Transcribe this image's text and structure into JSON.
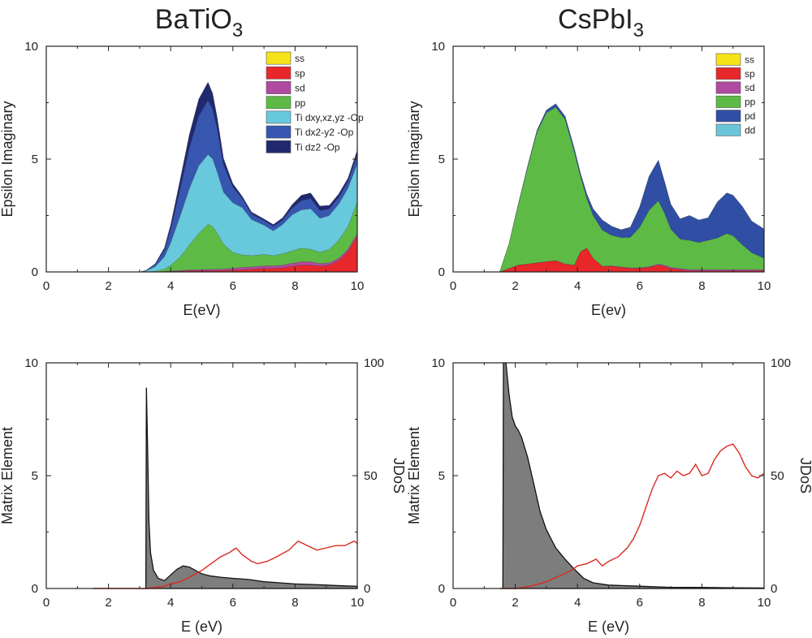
{
  "titles": {
    "left": "BaTiO",
    "left_sub": "3",
    "right": "CsPbI",
    "right_sub": "3"
  },
  "colors": {
    "ss": "#f7e21a",
    "sp": "#e8272b",
    "sd": "#b04aa0",
    "pp": "#5dbb45",
    "dxy": "#68c8dc",
    "dx2": "#3656b0",
    "dz2": "#21296e",
    "pd": "#2f4ea4",
    "dd": "#6bc5d8",
    "matrix": "#7d7d7d",
    "jdos": "#d92a20",
    "axis": "#222222"
  },
  "chart_data": [
    {
      "id": "batio3_eps",
      "type": "area",
      "title": "BaTiO3",
      "xlabel": "E(eV)",
      "ylabel": "Epsilon Imaginary",
      "xlim": [
        0,
        10
      ],
      "ylim": [
        0,
        10
      ],
      "xticks": [
        "0",
        "2",
        "4",
        "6",
        "8",
        "10"
      ],
      "yticks": [
        "0",
        "5",
        "10"
      ],
      "x": [
        3.0,
        3.2,
        3.5,
        3.8,
        4.0,
        4.3,
        4.6,
        4.9,
        5.2,
        5.35,
        5.5,
        5.7,
        6.0,
        6.3,
        6.6,
        7.0,
        7.3,
        7.6,
        7.9,
        8.2,
        8.5,
        8.8,
        9.1,
        9.4,
        9.7,
        10.0
      ],
      "legend": [
        "ss",
        "sp",
        "sd",
        "pp",
        "Ti dxy,xz,yz -Op",
        "Ti dx2-y2 -Op",
        "Ti dz2 -Op"
      ],
      "series": [
        {
          "name": "ss",
          "color_key": "ss",
          "values": [
            0,
            0,
            0,
            0,
            0,
            0,
            0,
            0,
            0,
            0,
            0,
            0,
            0,
            0,
            0,
            0,
            0,
            0,
            0,
            0,
            0,
            0,
            0,
            0,
            0,
            0
          ]
        },
        {
          "name": "sp",
          "color_key": "sp",
          "values": [
            0,
            0,
            0,
            0.01,
            0.02,
            0.03,
            0.05,
            0.05,
            0.05,
            0.05,
            0.06,
            0.06,
            0.08,
            0.1,
            0.12,
            0.15,
            0.15,
            0.18,
            0.25,
            0.3,
            0.3,
            0.25,
            0.3,
            0.5,
            0.9,
            1.6
          ]
        },
        {
          "name": "sd",
          "color_key": "sd",
          "values": [
            0,
            0,
            0,
            0.01,
            0.02,
            0.03,
            0.04,
            0.05,
            0.06,
            0.06,
            0.06,
            0.07,
            0.08,
            0.1,
            0.1,
            0.12,
            0.12,
            0.12,
            0.13,
            0.15,
            0.15,
            0.12,
            0.1,
            0.1,
            0.1,
            0.1
          ]
        },
        {
          "name": "pp",
          "color_key": "pp",
          "values": [
            0,
            0,
            0.03,
            0.1,
            0.25,
            0.6,
            1.1,
            1.6,
            2.0,
            1.9,
            1.6,
            1.1,
            0.7,
            0.55,
            0.5,
            0.5,
            0.45,
            0.5,
            0.55,
            0.6,
            0.55,
            0.5,
            0.6,
            0.8,
            1.0,
            1.4
          ]
        },
        {
          "name": "Ti dxy,xz,yz -Op",
          "color_key": "dxy",
          "values": [
            0,
            0.04,
            0.2,
            0.55,
            1.0,
            1.8,
            2.5,
            3.0,
            3.1,
            3.0,
            2.7,
            2.3,
            2.2,
            2.1,
            1.6,
            1.3,
            1.1,
            1.3,
            1.6,
            1.7,
            1.8,
            1.5,
            1.5,
            1.6,
            1.7,
            1.7
          ]
        },
        {
          "name": "Ti dx2-y2 -Op",
          "color_key": "dx2",
          "values": [
            0,
            0.02,
            0.1,
            0.3,
            0.6,
            1.2,
            1.8,
            2.2,
            2.4,
            2.2,
            1.9,
            1.2,
            0.7,
            0.4,
            0.25,
            0.2,
            0.2,
            0.2,
            0.3,
            0.4,
            0.45,
            0.35,
            0.3,
            0.3,
            0.3,
            0.4
          ]
        },
        {
          "name": "Ti dz2 -Op",
          "color_key": "dz2",
          "values": [
            0,
            0,
            0.03,
            0.1,
            0.2,
            0.4,
            0.6,
            0.75,
            0.8,
            0.7,
            0.5,
            0.3,
            0.15,
            0.1,
            0.08,
            0.08,
            0.08,
            0.1,
            0.15,
            0.25,
            0.25,
            0.2,
            0.15,
            0.15,
            0.15,
            0.2
          ]
        }
      ]
    },
    {
      "id": "cspbi3_eps",
      "type": "area",
      "title": "CsPbI3",
      "xlabel": "E(ev)",
      "ylabel": "Epsilon Imaginary",
      "xlim": [
        0,
        10
      ],
      "ylim": [
        0,
        10
      ],
      "xticks": [
        "0",
        "2",
        "4",
        "6",
        "8",
        "10"
      ],
      "yticks": [
        "0",
        "5",
        "10"
      ],
      "x": [
        1.5,
        1.8,
        2.1,
        2.4,
        2.7,
        3.0,
        3.3,
        3.6,
        3.9,
        4.1,
        4.3,
        4.5,
        4.8,
        5.1,
        5.4,
        5.7,
        6.0,
        6.3,
        6.6,
        6.8,
        7.0,
        7.3,
        7.6,
        7.9,
        8.2,
        8.5,
        8.8,
        9.0,
        9.3,
        9.6,
        10.0
      ],
      "legend": [
        "ss",
        "sp",
        "sd",
        "pp",
        "pd",
        "dd"
      ],
      "series": [
        {
          "name": "ss",
          "color_key": "ss",
          "values": [
            0,
            0,
            0,
            0,
            0,
            0,
            0,
            0,
            0,
            0,
            0,
            0,
            0,
            0,
            0,
            0,
            0,
            0,
            0,
            0,
            0,
            0,
            0,
            0,
            0,
            0,
            0,
            0,
            0,
            0,
            0
          ]
        },
        {
          "name": "sp",
          "color_key": "sp",
          "values": [
            0,
            0.15,
            0.3,
            0.35,
            0.4,
            0.45,
            0.5,
            0.35,
            0.3,
            0.9,
            1.05,
            0.6,
            0.25,
            0.25,
            0.2,
            0.15,
            0.15,
            0.2,
            0.3,
            0.25,
            0.15,
            0.1,
            0.05,
            0.05,
            0.05,
            0.05,
            0.05,
            0.05,
            0.05,
            0.05,
            0.05
          ]
        },
        {
          "name": "sd",
          "color_key": "sd",
          "values": [
            0,
            0,
            0,
            0,
            0,
            0,
            0,
            0,
            0,
            0,
            0,
            0,
            0,
            0.02,
            0.02,
            0.03,
            0.03,
            0.03,
            0.05,
            0.05,
            0.05,
            0.05,
            0.05,
            0.05,
            0.05,
            0.05,
            0.05,
            0.05,
            0.05,
            0.05,
            0.05
          ]
        },
        {
          "name": "pp",
          "color_key": "pp",
          "values": [
            0,
            1.1,
            2.7,
            4.3,
            5.8,
            6.6,
            6.8,
            6.4,
            5.0,
            3.3,
            2.2,
            1.9,
            1.6,
            1.35,
            1.3,
            1.35,
            1.8,
            2.5,
            2.8,
            2.3,
            1.7,
            1.3,
            1.3,
            1.2,
            1.3,
            1.4,
            1.6,
            1.5,
            1.1,
            0.75,
            0.5
          ]
        },
        {
          "name": "pd",
          "color_key": "pd",
          "values": [
            0,
            0,
            0.02,
            0.05,
            0.08,
            0.12,
            0.15,
            0.15,
            0.15,
            0.15,
            0.2,
            0.3,
            0.45,
            0.4,
            0.35,
            0.45,
            0.9,
            1.5,
            1.8,
            1.4,
            1.1,
            0.9,
            1.1,
            1.0,
            1.0,
            1.6,
            1.8,
            1.8,
            1.7,
            1.4,
            1.3
          ]
        },
        {
          "name": "dd",
          "color_key": "dd",
          "values": [
            0,
            0,
            0,
            0,
            0,
            0,
            0,
            0,
            0,
            0,
            0,
            0,
            0,
            0,
            0,
            0,
            0,
            0,
            0,
            0,
            0,
            0,
            0,
            0,
            0,
            0,
            0,
            0,
            0,
            0,
            0
          ]
        }
      ]
    },
    {
      "id": "batio3_me",
      "type": "area",
      "xlabel": "E (eV)",
      "ylabel": "Matrix Element",
      "y2label": "JDoS",
      "xlim": [
        0,
        10
      ],
      "ylim": [
        0,
        10
      ],
      "y2lim": [
        0,
        100
      ],
      "xticks": [
        "0",
        "2",
        "4",
        "6",
        "8",
        "10"
      ],
      "yticks": [
        "0",
        "5",
        "10"
      ],
      "y2ticks": [
        "0",
        "50",
        "100"
      ],
      "series": [
        {
          "name": "Matrix Element",
          "color_key": "matrix",
          "x": [
            3.2,
            3.22,
            3.26,
            3.3,
            3.35,
            3.45,
            3.6,
            3.8,
            4.0,
            4.2,
            4.4,
            4.6,
            4.8,
            5.0,
            5.3,
            5.6,
            6.0,
            6.5,
            7.0,
            7.5,
            8.0,
            8.5,
            9.0,
            9.5,
            10.0
          ],
          "values": [
            0,
            8.9,
            6.0,
            3.0,
            1.6,
            0.8,
            0.45,
            0.35,
            0.6,
            0.85,
            1.0,
            0.95,
            0.8,
            0.65,
            0.55,
            0.5,
            0.45,
            0.4,
            0.3,
            0.25,
            0.2,
            0.18,
            0.15,
            0.12,
            0.1
          ]
        },
        {
          "name": "JDoS",
          "color_key": "jdos",
          "axis": "y2",
          "x": [
            1.5,
            3.2,
            3.5,
            3.8,
            4.0,
            4.3,
            4.6,
            5.0,
            5.3,
            5.6,
            5.9,
            6.1,
            6.3,
            6.6,
            6.8,
            7.1,
            7.4,
            7.8,
            8.1,
            8.4,
            8.7,
            9.0,
            9.3,
            9.6,
            9.9,
            10.0
          ],
          "values": [
            0,
            0,
            0.5,
            1,
            2,
            3,
            5,
            8,
            11,
            14,
            16,
            18,
            15,
            12,
            11,
            12,
            14,
            17,
            21,
            19,
            17,
            18,
            19,
            19,
            21,
            20
          ]
        }
      ]
    },
    {
      "id": "cspbi3_me",
      "type": "area",
      "xlabel": "E (eV)",
      "ylabel": "Matrix Element",
      "y2label": "JDoS",
      "xlim": [
        0,
        10
      ],
      "ylim": [
        0,
        10
      ],
      "y2lim": [
        0,
        100
      ],
      "xticks": [
        "0",
        "2",
        "4",
        "6",
        "8",
        "10"
      ],
      "yticks": [
        "0",
        "5",
        "10"
      ],
      "y2ticks": [
        "0",
        "50",
        "100"
      ],
      "series": [
        {
          "name": "Matrix Element",
          "color_key": "matrix",
          "x": [
            1.6,
            1.62,
            1.65,
            1.7,
            1.8,
            1.9,
            2.0,
            2.1,
            2.2,
            2.4,
            2.6,
            2.8,
            3.0,
            3.3,
            3.6,
            3.9,
            4.2,
            4.5,
            5.0,
            6.0,
            7.0,
            8.0,
            9.0,
            10.0
          ],
          "values": [
            0,
            10,
            10,
            10,
            8.6,
            7.6,
            7.2,
            7.0,
            6.7,
            5.8,
            4.6,
            3.4,
            2.6,
            1.8,
            1.3,
            0.85,
            0.45,
            0.25,
            0.15,
            0.1,
            0.05,
            0.05,
            0.03,
            0.02
          ]
        },
        {
          "name": "JDoS",
          "color_key": "jdos",
          "axis": "y2",
          "x": [
            1.5,
            2.0,
            2.5,
            3.0,
            3.5,
            3.8,
            4.0,
            4.3,
            4.6,
            4.8,
            5.0,
            5.3,
            5.6,
            5.8,
            6.0,
            6.2,
            6.4,
            6.6,
            6.8,
            7.0,
            7.2,
            7.4,
            7.6,
            7.8,
            8.0,
            8.2,
            8.4,
            8.6,
            8.8,
            9.0,
            9.2,
            9.4,
            9.6,
            9.8,
            10.0
          ],
          "values": [
            0,
            0,
            1,
            3,
            6,
            8,
            10,
            11,
            13,
            10,
            12,
            14,
            18,
            22,
            28,
            36,
            44,
            50,
            51,
            49,
            52,
            50,
            51,
            55,
            50,
            51,
            57,
            61,
            63,
            64,
            60,
            54,
            50,
            49,
            51
          ]
        }
      ]
    }
  ]
}
